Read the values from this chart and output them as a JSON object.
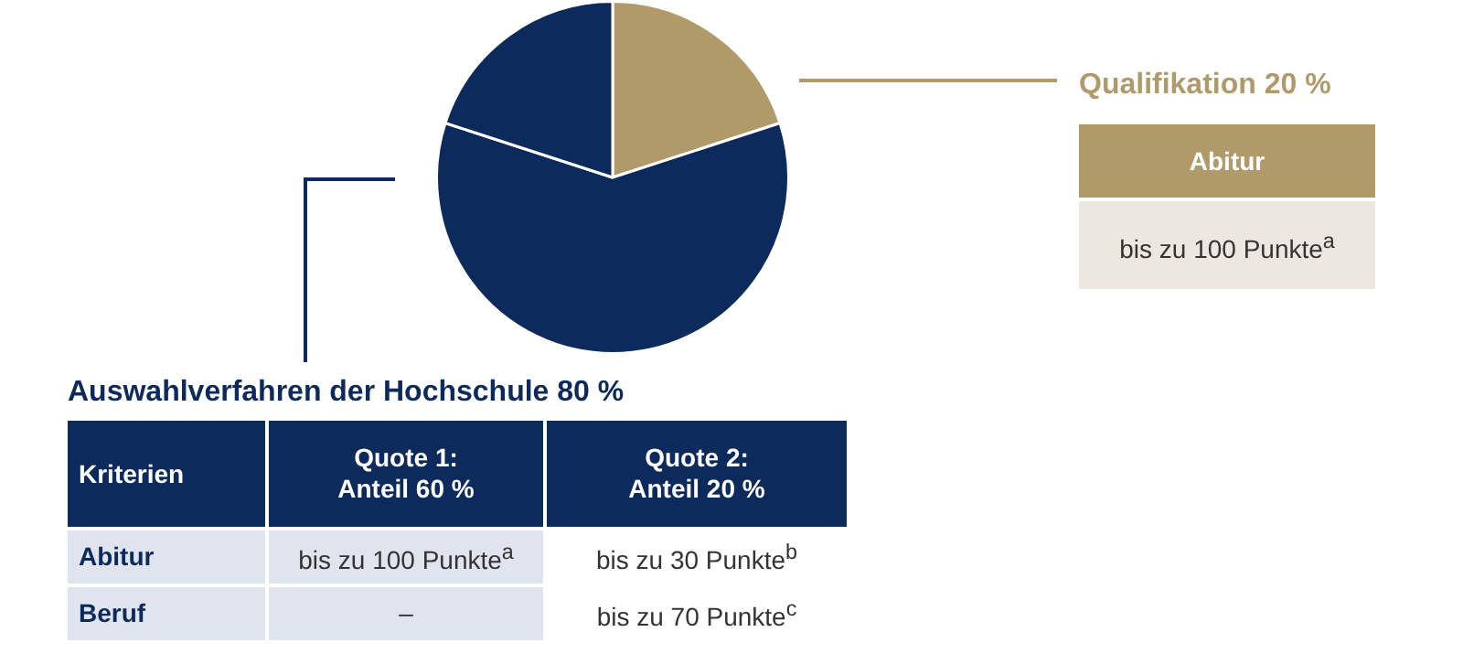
{
  "chart_data": {
    "type": "pie",
    "categories": [
      null,
      null,
      null
    ],
    "values": [
      20,
      60,
      20
    ],
    "colors": [
      "#b09a6a",
      "#0c2a5b",
      "#0c2a5b"
    ],
    "legend": false,
    "annotations": [
      "Qualifikation 20 %",
      "Abitur",
      "bis zu 100 Punkte$^{a}$",
      "Auswahlverfahren der Hochschule 80 %",
      "Kriterien",
      "Quote 1:\nAnteil 60 %",
      "Quote 2:\nAnteil 20 %",
      "Abitur",
      "bis zu 100 Punkte$^{a}$",
      "bis zu 30 Punkte$^{b}$",
      "Beruf",
      "–",
      "bis zu 70 Punkte$^{c}$"
    ]
  }
}
